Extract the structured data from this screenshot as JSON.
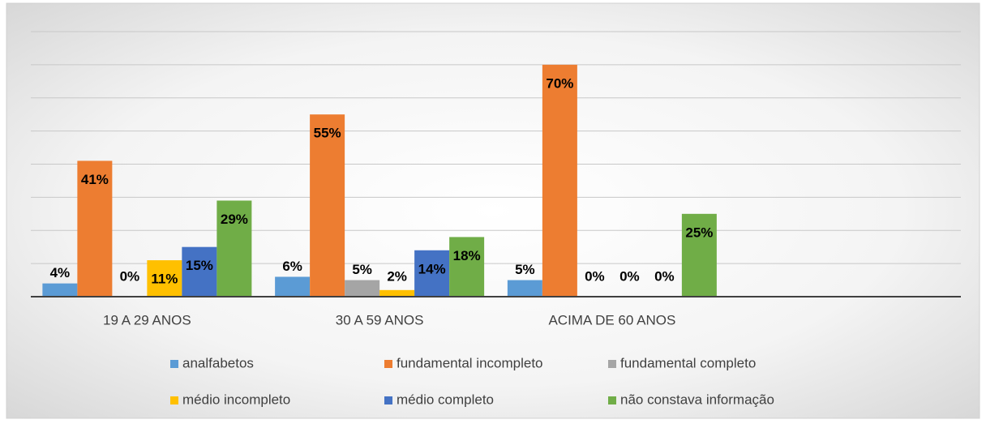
{
  "chart_data": {
    "type": "bar",
    "categories": [
      "19 A 29 ANOS",
      "30 A 59 ANOS",
      "ACIMA DE 60 ANOS",
      null
    ],
    "series": [
      {
        "name": "analfabetos",
        "color": "#5b9bd5",
        "values": [
          4,
          6,
          5,
          null
        ],
        "value_labels": [
          "4%",
          "6%",
          "5%",
          null
        ]
      },
      {
        "name": "fundamental incompleto",
        "color": "#ed7d31",
        "values": [
          41,
          55,
          70,
          null
        ],
        "value_labels": [
          "41%",
          "55%",
          "70%",
          null
        ]
      },
      {
        "name": "fundamental completo",
        "color": "#a5a5a5",
        "values": [
          0,
          5,
          0,
          null
        ],
        "value_labels": [
          "0%",
          "5%",
          "0%",
          null
        ]
      },
      {
        "name": "médio incompleto",
        "color": "#ffc000",
        "values": [
          11,
          2,
          0,
          null
        ],
        "value_labels": [
          "11%",
          "2%",
          "0%",
          null
        ]
      },
      {
        "name": "médio completo",
        "color": "#4472c4",
        "values": [
          15,
          14,
          0,
          null
        ],
        "value_labels": [
          "15%",
          "14%",
          "0%",
          null
        ]
      },
      {
        "name": "não constava informação",
        "color": "#70ad47",
        "values": [
          29,
          18,
          25,
          null
        ],
        "value_labels": [
          "29%",
          "18%",
          "25%",
          null
        ]
      }
    ],
    "ylim": [
      0,
      80
    ],
    "yticks": [
      0,
      10,
      20,
      30,
      40,
      50,
      60,
      70,
      80
    ],
    "grid": true
  }
}
